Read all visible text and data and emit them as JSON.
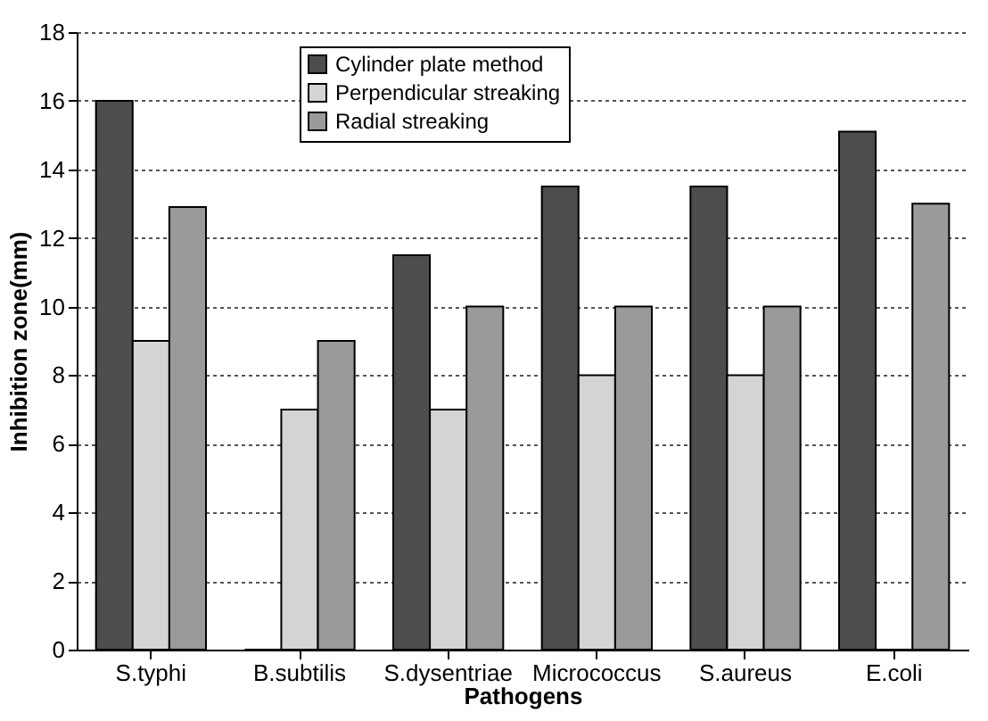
{
  "chart_data": {
    "type": "bar",
    "xlabel": "Pathogens",
    "ylabel": "Inhibition zone(mm)",
    "categories": [
      "S.typhi",
      "B.subtilis",
      "S.dysentriae",
      "Micrococcus",
      "S.aureus",
      "E.coli"
    ],
    "series": [
      {
        "name": "Cylinder plate method",
        "color": "#4d4d4d",
        "values": [
          16,
          0,
          11.5,
          13.5,
          13.5,
          15.1
        ]
      },
      {
        "name": "Perpendicular streaking",
        "color": "#d4d4d4",
        "values": [
          9,
          7,
          7,
          8,
          8,
          0
        ]
      },
      {
        "name": "Radial streaking",
        "color": "#9a9a9a",
        "values": [
          12.9,
          9,
          10,
          10,
          10,
          13
        ]
      }
    ],
    "ylim": [
      0,
      18
    ],
    "yticks": [
      0,
      2,
      4,
      6,
      8,
      10,
      12,
      14,
      16,
      18
    ],
    "grid": "y",
    "legend": "top"
  }
}
